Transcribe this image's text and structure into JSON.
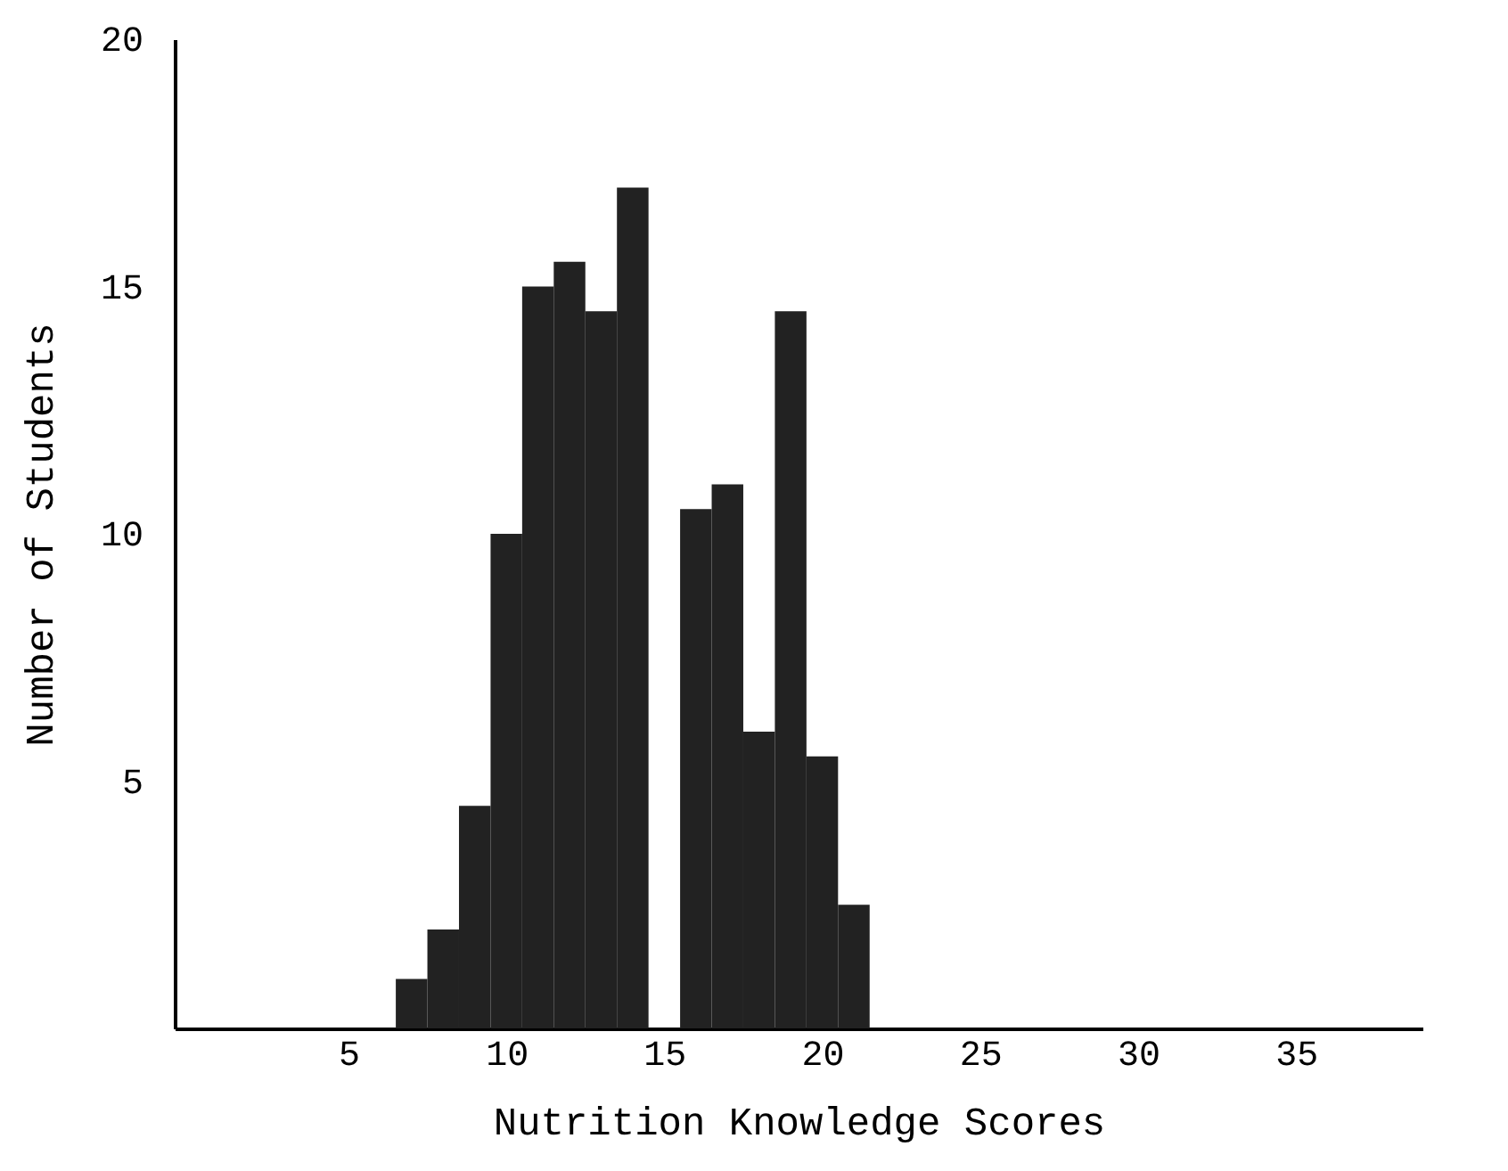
{
  "chart_data": {
    "type": "histogram",
    "xlabel": "Nutrition Knowledge Scores",
    "ylabel": "Number of Students",
    "bins": [
      6.5,
      7.5,
      8.5,
      9.5,
      10.5,
      11.5,
      12.5,
      13.5,
      14.5,
      15.5,
      16.5,
      17.5,
      18.5,
      19.5,
      20.5,
      21.5
    ],
    "values": [
      1,
      2,
      4.5,
      10,
      15,
      15.5,
      14.5,
      17,
      0,
      10.5,
      11,
      6,
      14.5,
      5.5,
      2.5
    ],
    "color": "#222222",
    "xlim": [
      -0.5,
      39
    ],
    "xticks": [
      5,
      10,
      15,
      20,
      25,
      30,
      35
    ],
    "ylim": [
      0,
      20
    ],
    "yticks": [
      5,
      10,
      15,
      20
    ],
    "grid": false
  }
}
